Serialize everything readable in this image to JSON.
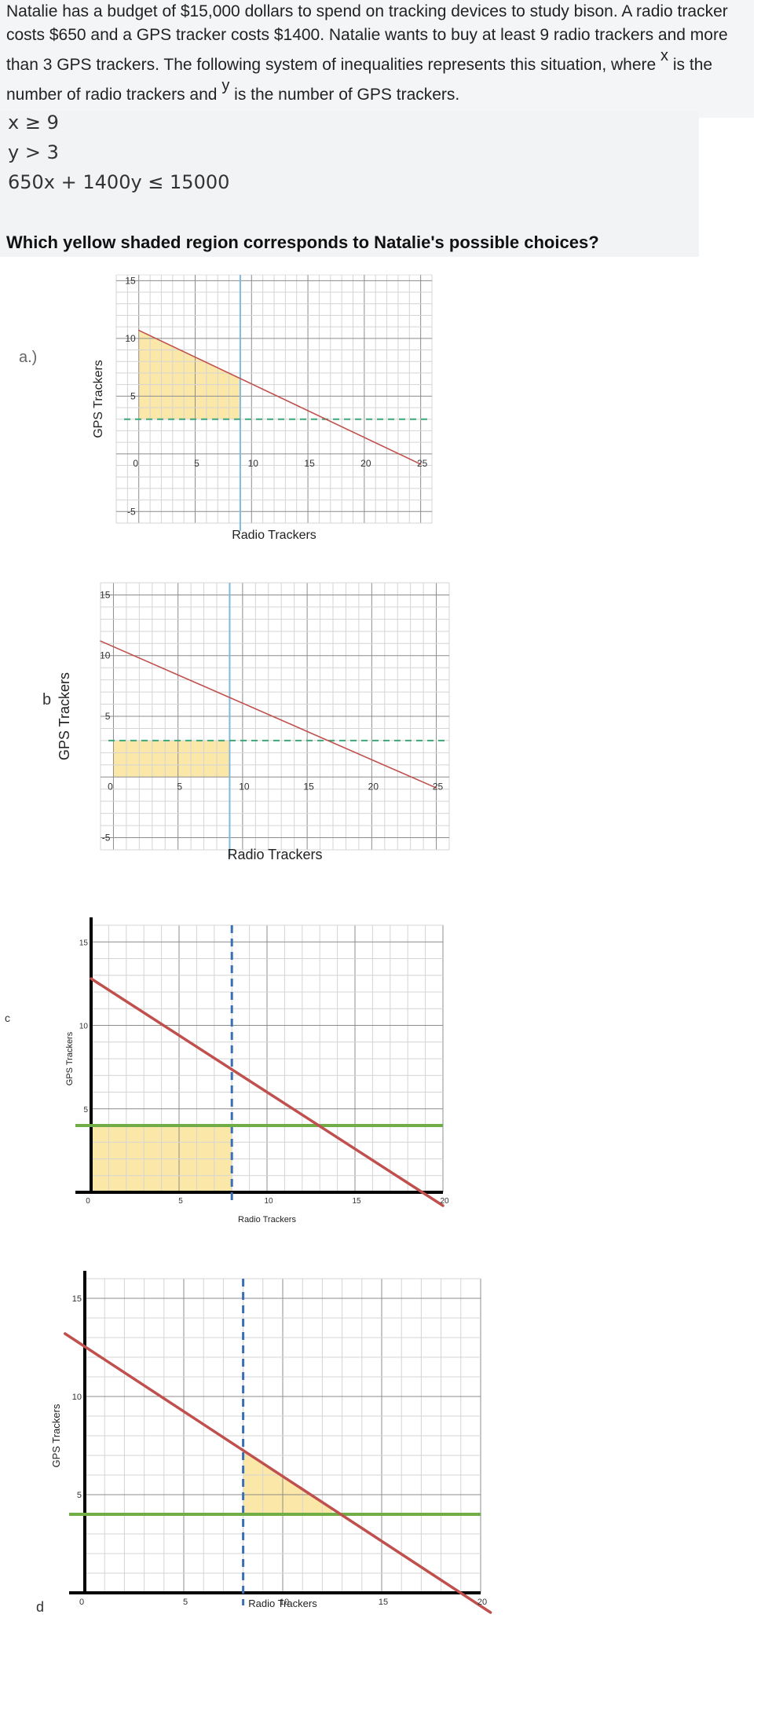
{
  "problem": {
    "text_part1": "Natalie has a budget of $15,000 dollars to spend on tracking devices to study bison. A radio tracker costs $650 and a GPS tracker costs $1400. Natalie wants to buy at least 9 radio trackers and more than 3 GPS trackers. The following system of inequalities represents this situation, where ",
    "var_x": "x",
    "text_part2": " is the number of radio trackers and ",
    "var_y": "y",
    "text_part3": " is the number of GPS trackers."
  },
  "inequalities": [
    "x ≥ 9",
    "y > 3",
    "650x + 1400y ≤ 15000"
  ],
  "question": "Which yellow shaded region corresponds to Natalie's possible choices?",
  "option_labels": [
    "a.)",
    "b",
    "c",
    "d"
  ],
  "colors": {
    "shade": "#fbe7a3",
    "boundary_red": "#c0504d",
    "dashed_green": "#3fa57a",
    "vertical_blue": "#7fb9dc",
    "solid_green": "#70ad47",
    "dashed_blue": "#3a6fb7"
  },
  "chart_data": [
    {
      "type": "area",
      "id": "a",
      "xlabel": "Radio Trackers",
      "ylabel": "GPS Trackers",
      "xlim": [
        -2,
        26
      ],
      "ylim": [
        -6,
        15.5
      ],
      "x_ticks": [
        0,
        5,
        10,
        15,
        20,
        25
      ],
      "y_ticks": [
        15,
        10,
        5,
        -5
      ],
      "boundary_line": {
        "x": [
          0,
          25
        ],
        "y": [
          10.7,
          -0.9
        ]
      },
      "vertical_line": {
        "x": 9
      },
      "horizontal_line": {
        "y": 3
      },
      "shaded_region": {
        "x_range": [
          0,
          9
        ],
        "bounded_below_by": 3,
        "bounded_above_by": "line"
      }
    },
    {
      "type": "area",
      "id": "b",
      "xlabel": "Radio Trackers",
      "ylabel": "GPS Trackers",
      "xlim": [
        -1,
        26
      ],
      "ylim": [
        -6,
        16
      ],
      "x_ticks": [
        0,
        5,
        10,
        15,
        20,
        25
      ],
      "y_ticks": [
        15,
        10,
        5,
        -5
      ],
      "boundary_line": {
        "x": [
          -1,
          25
        ],
        "y": [
          11.2,
          -0.9
        ]
      },
      "vertical_line": {
        "x": 9
      },
      "horizontal_line": {
        "y": 3
      },
      "shaded_region": {
        "x_range": [
          0,
          9
        ],
        "y_range": [
          0,
          3
        ]
      }
    },
    {
      "type": "area",
      "id": "c",
      "xlabel": "Radio Trackers",
      "ylabel": "GPS Trackers",
      "xlim": [
        0,
        20
      ],
      "ylim": [
        0,
        16
      ],
      "x_ticks": [
        0,
        5,
        10,
        15,
        20
      ],
      "y_ticks": [
        15,
        10,
        5
      ],
      "boundary_line": {
        "x": [
          0,
          20
        ],
        "y": [
          12.8,
          -0.8
        ]
      },
      "vertical_line": {
        "x": 8
      },
      "horizontal_line": {
        "y": 4
      },
      "shaded_region": {
        "x_range": [
          0,
          8
        ],
        "y_range": [
          0,
          4
        ]
      }
    },
    {
      "type": "area",
      "id": "d",
      "xlabel": "Radio Trackers",
      "ylabel": "GPS Trackers",
      "xlim": [
        0,
        20
      ],
      "ylim": [
        0,
        16
      ],
      "x_ticks": [
        0,
        5,
        10,
        15,
        20
      ],
      "y_ticks": [
        15,
        10,
        5
      ],
      "boundary_line": {
        "x": [
          -1,
          20.5
        ],
        "y": [
          13.2,
          -1
        ]
      },
      "vertical_line": {
        "x": 8
      },
      "horizontal_line": {
        "y": 4
      },
      "shaded_region": {
        "x_range": [
          8,
          12.5
        ],
        "bounded_below_by": 4,
        "bounded_above_by": "line"
      }
    }
  ]
}
